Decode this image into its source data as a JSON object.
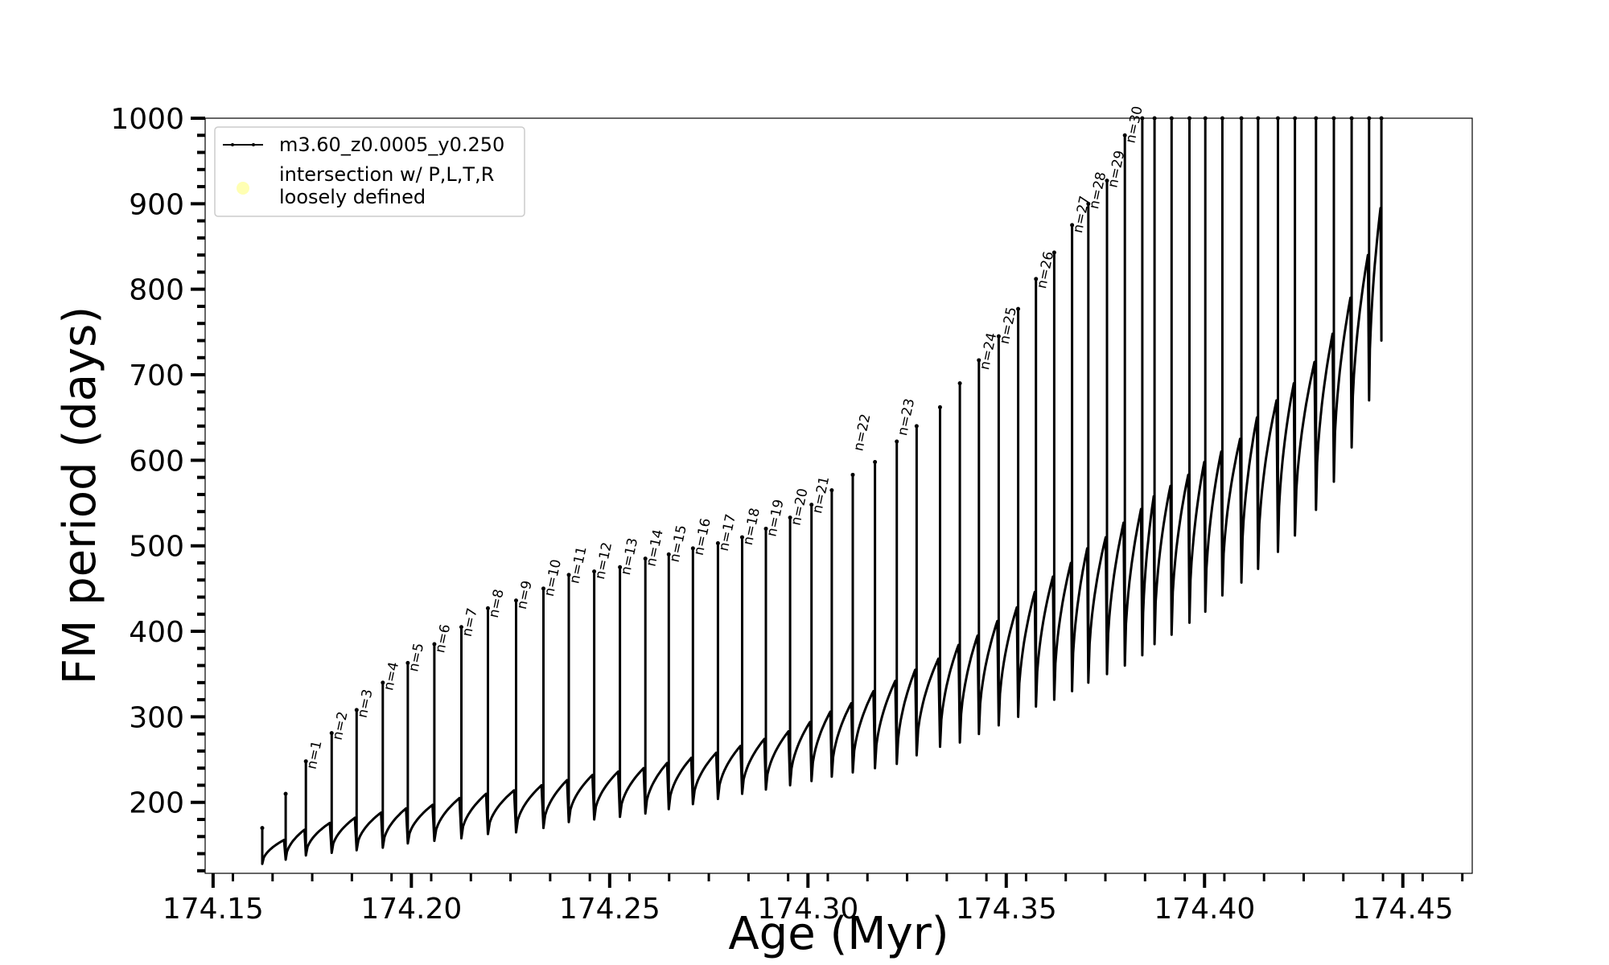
{
  "chart_data": {
    "type": "line",
    "xlabel": "Age (Myr)",
    "ylabel": "FM period (days)",
    "xlim": [
      174.148,
      174.4675
    ],
    "ylim": [
      117,
      1000
    ],
    "xticks": [
      "174.15",
      "174.20",
      "174.25",
      "174.30",
      "174.35",
      "174.40",
      "174.45"
    ],
    "xtick_values": [
      174.15,
      174.2,
      174.25,
      174.3,
      174.35,
      174.4,
      174.45
    ],
    "yticks": [
      "200",
      "300",
      "400",
      "500",
      "600",
      "700",
      "800",
      "900",
      "1000"
    ],
    "ytick_values": [
      200,
      300,
      400,
      500,
      600,
      700,
      800,
      900,
      1000
    ],
    "legend": {
      "placement": "upper-left",
      "entries": [
        {
          "label": "m3.60_z0.0005_y0.250",
          "color": "#000000",
          "marker": "line-with-dots"
        },
        {
          "label": "intersection w/ P,L,T,R",
          "label2": "loosely defined",
          "color": "#ffffb3",
          "marker": "circle"
        }
      ]
    },
    "series": [
      {
        "name": "m3.60_z0.0005_y0.250",
        "color": "#000000",
        "pulse_x": [
          174.1624,
          174.1683,
          174.1734,
          174.1799,
          174.1862,
          174.1928,
          174.1991,
          174.2058,
          174.2126,
          174.2193,
          174.2264,
          174.2333,
          174.2397,
          174.2461,
          174.2526,
          174.259,
          174.2649,
          174.271,
          174.2773,
          174.2834,
          174.2894,
          174.2955,
          174.3009,
          174.306,
          174.3113,
          174.3169,
          174.3224,
          174.3274,
          174.3333,
          174.3383,
          174.3431,
          174.3481,
          174.353,
          174.3575,
          174.3621,
          174.3666,
          174.3707,
          174.3754,
          174.3799,
          174.3843,
          174.3874,
          174.3917,
          174.3962,
          174.4002,
          174.4045,
          174.4093,
          174.4135,
          174.4185,
          174.4228,
          174.4281,
          174.4326,
          174.4371,
          174.4415,
          174.4446
        ],
        "pulse_peak": [
          170,
          210,
          248,
          281,
          308,
          340,
          363,
          385,
          405,
          427,
          436,
          450,
          466,
          470,
          475,
          485,
          490,
          497,
          503,
          510,
          520,
          533,
          548,
          565,
          583,
          598,
          622,
          640,
          662,
          690,
          717,
          745,
          777,
          812,
          843,
          875,
          900,
          927,
          980,
          1000,
          1000,
          1000,
          1000,
          1000,
          1000,
          1000,
          1000,
          1000,
          1000,
          1000,
          1000,
          1000,
          1000,
          1000
        ],
        "pulse_min": [
          128,
          133,
          138,
          141,
          144,
          147,
          152,
          155,
          158,
          163,
          165,
          170,
          177,
          180,
          183,
          187,
          192,
          198,
          204,
          210,
          215,
          220,
          225,
          230,
          235,
          240,
          245,
          255,
          265,
          270,
          280,
          290,
          300,
          312,
          320,
          330,
          340,
          350,
          360,
          372,
          385,
          396,
          410,
          423,
          442,
          457,
          473,
          493,
          512,
          542,
          575,
          615,
          670,
          740
        ],
        "baseline_end": [
          156,
          168,
          176,
          182,
          188,
          193,
          197,
          205,
          210,
          214,
          220,
          226,
          232,
          236,
          240,
          246,
          252,
          258,
          266,
          274,
          283,
          294,
          306,
          316,
          330,
          342,
          355,
          368,
          384,
          395,
          412,
          428,
          446,
          464,
          480,
          497,
          510,
          527,
          543,
          558,
          570,
          583,
          598,
          610,
          625,
          650,
          670,
          690,
          715,
          748,
          790,
          840,
          895,
          1000
        ]
      }
    ],
    "annotations": [
      "n=1",
      "n=2",
      "n=3",
      "n=4",
      "n=5",
      "n=6",
      "n=7",
      "n=8",
      "n=9",
      "n=10",
      "n=11",
      "n=12",
      "n=13",
      "n=14",
      "n=15",
      "n=16",
      "n=17",
      "n=18",
      "n=19",
      "n=20",
      "n=21",
      "n=22",
      "n=23",
      "n=24",
      "n=25",
      "n=26",
      "n=27",
      "n=28",
      "n=29",
      "n=30"
    ],
    "annotation_pulse_index": [
      2,
      3,
      4,
      5,
      6,
      7,
      8,
      9,
      10,
      11,
      12,
      13,
      14,
      15,
      16,
      17,
      18,
      19,
      20,
      21,
      22,
      24,
      26,
      30,
      31,
      33,
      35,
      36,
      37,
      38
    ],
    "annotation_y": [
      238,
      272,
      298,
      330,
      352,
      374,
      393,
      415,
      425,
      440,
      455,
      460,
      465,
      475,
      480,
      488,
      493,
      500,
      510,
      523,
      537,
      610,
      628,
      705,
      735,
      800,
      865,
      893,
      918,
      970
    ]
  }
}
